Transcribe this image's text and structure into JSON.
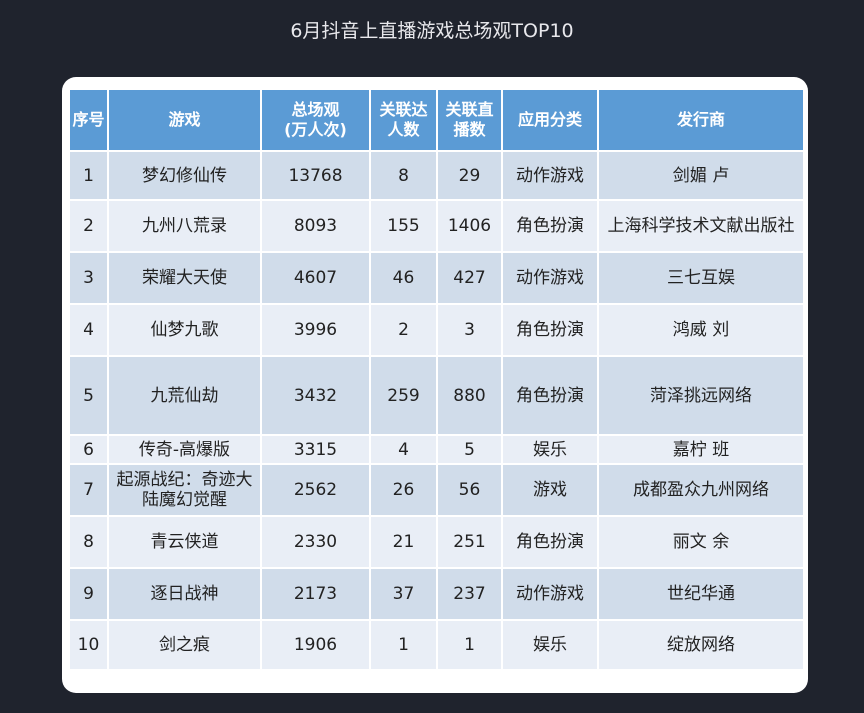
{
  "title": "6月抖音上直播游戏总场观TOP10",
  "headers": [
    "序号",
    "游戏",
    "总场观\n(万人次)",
    "关联达\n人数",
    "关联直\n播数",
    "应用分类",
    "发行商"
  ],
  "rows": [
    [
      "1",
      "梦幻修仙传",
      "13768",
      "8",
      "29",
      "动作游戏",
      "剑媚 卢"
    ],
    [
      "2",
      "九州八荒录",
      "8093",
      "155",
      "1406",
      "角色扮演",
      "上海科学技术文献出版社"
    ],
    [
      "3",
      "荣耀大天使",
      "4607",
      "46",
      "427",
      "动作游戏",
      "三七互娱"
    ],
    [
      "4",
      "仙梦九歌",
      "3996",
      "2",
      "3",
      "角色扮演",
      "鸿威 刘"
    ],
    [
      "5",
      "九荒仙劫",
      "3432",
      "259",
      "880",
      "角色扮演",
      "菏泽挑远网络"
    ],
    [
      "6",
      "传奇-高爆版",
      "3315",
      "4",
      "5",
      "娱乐",
      "嘉柠 班"
    ],
    [
      "7",
      "起源战纪：奇迹大陆魔幻觉醒",
      "2562",
      "26",
      "56",
      "游戏",
      "成都盈众九州网络"
    ],
    [
      "8",
      "青云侠道",
      "2330",
      "21",
      "251",
      "角色扮演",
      "丽文 余"
    ],
    [
      "9",
      "逐日战神",
      "2173",
      "37",
      "237",
      "动作游戏",
      "世纪华通"
    ],
    [
      "10",
      "剑之痕",
      "1906",
      "1",
      "1",
      "娱乐",
      "绽放网络"
    ]
  ],
  "colors": {
    "background": "#1f232d",
    "header": "#5b9bd5",
    "row_dark": "#d0dcea",
    "row_light": "#e9eef6"
  }
}
